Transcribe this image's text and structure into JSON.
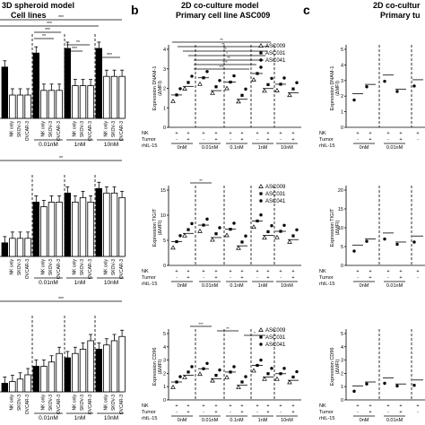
{
  "panel_a": {
    "title_line1": "3D spheroid model",
    "title_line2": "Cell lines",
    "group_labels": [
      "NK only",
      "SKOV-3",
      "OVCAR-3",
      "NK only",
      "SKOV-3",
      "OVCAR-3",
      "NK only",
      "SKOV-3",
      "OVCAR-3",
      "NK only",
      "SKOV-3",
      "OVCAR-3"
    ],
    "conc_labels": [
      "0.01nM",
      "1nM",
      "10nM"
    ],
    "sig_top": [
      "***",
      "***",
      "***",
      "**",
      "**",
      "***",
      "***"
    ],
    "sig_mid": [
      "**"
    ],
    "sig_bot": [
      "***"
    ],
    "rows": [
      {
        "bars": [
          0.55,
          0.25,
          0.25,
          0.25,
          0.7,
          0.3,
          0.3,
          0.3,
          0.75,
          0.35,
          0.35,
          0.35,
          0.75,
          0.45,
          0.45,
          0.45
        ]
      },
      {
        "bars": [
          0.15,
          0.2,
          0.2,
          0.2,
          0.6,
          0.55,
          0.6,
          0.6,
          0.7,
          0.6,
          0.65,
          0.6,
          0.75,
          0.7,
          0.7,
          0.65
        ]
      },
      {
        "bars": [
          0.1,
          0.12,
          0.15,
          0.2,
          0.3,
          0.3,
          0.35,
          0.45,
          0.4,
          0.45,
          0.5,
          0.6,
          0.5,
          0.55,
          0.6,
          0.65
        ]
      }
    ]
  },
  "panel_b": {
    "letter": "b",
    "title_line1": "2D co-culture model",
    "title_line2": "Primary cell line ASC009",
    "legend": [
      "ASC009",
      "ASC031",
      "ASC041"
    ],
    "ylabels": [
      "Expression DNAM-1\n(ΔMFI)",
      "Expression TIGIT\n(ΔMFI)",
      "Expression CD96\n(ΔMFI)"
    ],
    "row_labels": [
      "NK",
      "Tumor",
      "rhIL-15"
    ],
    "nk_signs": [
      "+",
      "+",
      "+",
      "+",
      "+",
      "+",
      "+",
      "+",
      "+",
      "+"
    ],
    "tumor_signs": [
      "-",
      "+",
      "-",
      "+",
      "-",
      "+",
      "-",
      "+",
      "-",
      "+"
    ],
    "conc_labels": [
      "0nM",
      "0.01nM",
      "0.1nM",
      "1nM",
      "10nM"
    ],
    "sig_top": [
      "**",
      "**",
      "**",
      "*",
      "**",
      "***",
      "***"
    ],
    "sig_mid": [
      "**"
    ],
    "sig_bot": [
      "***",
      "**",
      "*"
    ],
    "y_ticks_dnam": [
      "0",
      "1",
      "2",
      "3",
      "4"
    ],
    "y_ticks_tigit": [
      "0",
      "5",
      "10",
      "15"
    ],
    "y_ticks_cd96": [
      "0",
      "1",
      "2",
      "3",
      "4",
      "5"
    ]
  },
  "panel_c": {
    "letter": "c",
    "title_line1": "2D co-cultur",
    "title_line2": "Primary tu",
    "ylabels": [
      "Expression DNAM-1\n(ΔMFI)",
      "Expression TIGIT\n(ΔMFI)",
      "Expression CD96\n(ΔMFI)"
    ],
    "row_labels": [
      "NK",
      "Tumor",
      "rhIL-15"
    ],
    "nk_signs": [
      "+",
      "+",
      "+",
      "+",
      "+"
    ],
    "tumor_signs": [
      "-",
      "+",
      "-",
      "+",
      "-"
    ],
    "conc_labels": [
      "0nM",
      "0.01nM"
    ],
    "y_ticks_dnam": [
      "0",
      "1",
      "2",
      "3",
      "4",
      "5"
    ],
    "y_ticks_tigit": [
      "0",
      "5",
      "10",
      "15",
      "20"
    ],
    "y_ticks_cd96": [
      "0",
      "1",
      "2",
      "3",
      "4",
      "5"
    ]
  }
}
